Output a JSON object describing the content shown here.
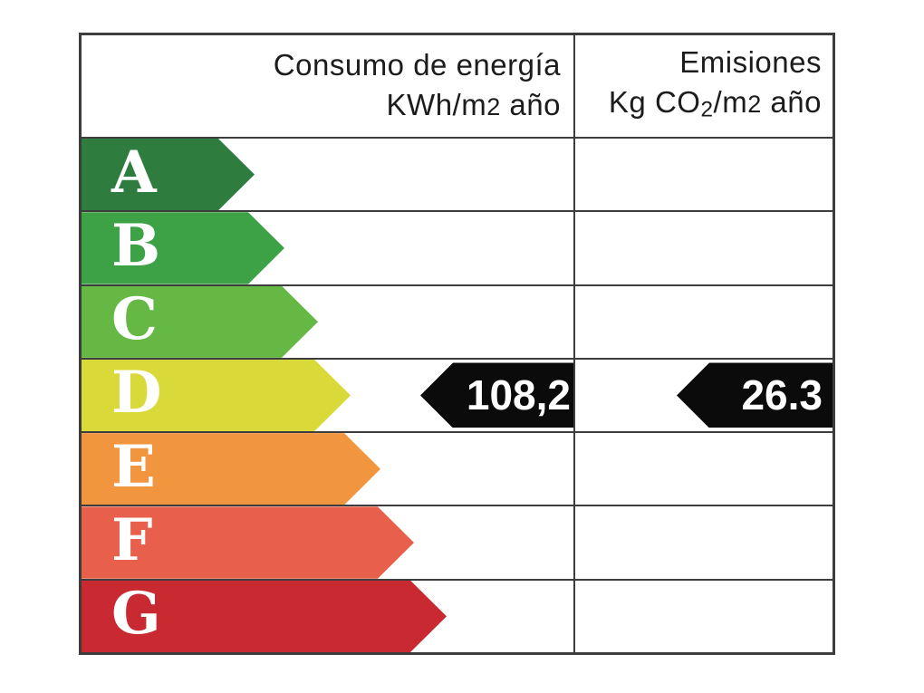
{
  "header": {
    "consumption": {
      "line1": "Consumo de energía",
      "unit_prefix": "KWh/m",
      "unit_exp": "2",
      "unit_suffix": " año"
    },
    "emissions": {
      "line1": "Emisiones",
      "unit_prefix": "Kg CO",
      "unit_sub": "2",
      "unit_mid": "/m",
      "unit_exp": "2",
      "unit_suffix": " año"
    }
  },
  "ratings": [
    {
      "grade": "A",
      "color": "#2e7d3e"
    },
    {
      "grade": "B",
      "color": "#3da245"
    },
    {
      "grade": "C",
      "color": "#65b844"
    },
    {
      "grade": "D",
      "color": "#d9d93a"
    },
    {
      "grade": "E",
      "color": "#f2953f"
    },
    {
      "grade": "F",
      "color": "#e8604b"
    },
    {
      "grade": "G",
      "color": "#c92a32"
    }
  ],
  "values": {
    "consumption": "108,2",
    "emissions": "26.3"
  },
  "colors": {
    "border": "#3d3d3d",
    "value_arrow": "#0b0b0b",
    "header_text": "#1c1c1c",
    "letter": "#ffffff"
  },
  "chart_data": {
    "type": "table",
    "columns": [
      "Consumo de energía KWh/m2 año",
      "Emisiones Kg CO2/m2 año"
    ],
    "grades": [
      "A",
      "B",
      "C",
      "D",
      "E",
      "F",
      "G"
    ],
    "grade_colors": [
      "#2e7d3e",
      "#3da245",
      "#65b844",
      "#d9d93a",
      "#f2953f",
      "#e8604b",
      "#c92a32"
    ],
    "rated_grade": "D",
    "values": [
      {
        "metric": "Consumo de energía (KWh/m2 año)",
        "value": "108,2",
        "grade": "D"
      },
      {
        "metric": "Emisiones (Kg CO2/m2 año)",
        "value": "26.3",
        "grade": "D"
      }
    ],
    "legend_position": "none",
    "grid": true
  }
}
